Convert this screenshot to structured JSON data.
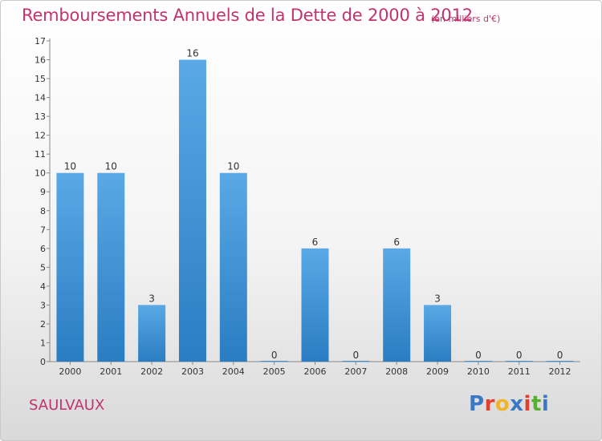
{
  "header": {
    "title": "Remboursements Annuels de la Dette de 2000 à 2012",
    "unit": "(en milliers d'€)"
  },
  "footer": {
    "commune": "SAULVAUX",
    "logo": [
      "P",
      "r",
      "o",
      "x",
      "i",
      "t",
      "i"
    ]
  },
  "colors": {
    "title": "#c2336d",
    "bar_top": "#5aa9e6",
    "bar_bottom": "#2a7dc2",
    "logo": [
      "#3b78c3",
      "#e2402f",
      "#f0b429",
      "#3b78c3",
      "#e2402f",
      "#58b031",
      "#3b78c3"
    ]
  },
  "chart_data": {
    "type": "bar",
    "title": "Remboursements Annuels de la Dette de 2000 à 2012",
    "xlabel": "",
    "ylabel": "",
    "categories": [
      "2000",
      "2001",
      "2002",
      "2003",
      "2004",
      "2005",
      "2006",
      "2007",
      "2008",
      "2009",
      "2010",
      "2011",
      "2012"
    ],
    "values": [
      10,
      10,
      3,
      16,
      10,
      0,
      6,
      0,
      6,
      3,
      0,
      0,
      0
    ],
    "ylim": [
      0,
      17
    ],
    "yticks": [
      "0",
      "1",
      "2",
      "3",
      "4",
      "5",
      "6",
      "7",
      "8",
      "9",
      "10",
      "11",
      "12",
      "13",
      "14",
      "15",
      "16",
      "17"
    ],
    "grid": false,
    "data_labels": true
  }
}
